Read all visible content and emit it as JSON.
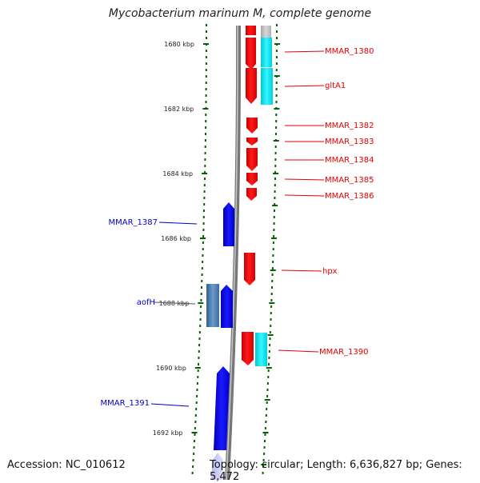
{
  "title": "Mycobacterium marinum M, complete genome",
  "footer": {
    "accession": "Accession: NC_010612",
    "summary": "Topology: circular; Length: 6,636,827 bp; Genes: 5,472"
  },
  "colors": {
    "forward_gene": "#ff0000",
    "reverse_gene": "#0000ff",
    "forward_feature": "#00e5ee",
    "reverse_feature": "#4a7fb5",
    "backbone": "#808080",
    "tick": "#006400"
  },
  "scale": {
    "unit": "kbp",
    "ticks": [
      {
        "label": "1680 kbp"
      },
      {
        "label": "1682 kbp"
      },
      {
        "label": "1684 kbp"
      },
      {
        "label": "1686 kbp"
      },
      {
        "label": "1688 kbp"
      },
      {
        "label": "1690 kbp"
      },
      {
        "label": "1692 kbp"
      }
    ]
  },
  "gene_labels_right": [
    {
      "name": "MMAR_1380"
    },
    {
      "name": "gltA1"
    },
    {
      "name": "MMAR_1382"
    },
    {
      "name": "MMAR_1383"
    },
    {
      "name": "MMAR_1384"
    },
    {
      "name": "MMAR_1385"
    },
    {
      "name": "MMAR_1386"
    },
    {
      "name": "hpx"
    },
    {
      "name": "MMAR_1390"
    }
  ],
  "gene_labels_left": [
    {
      "name": "MMAR_1387"
    },
    {
      "name": "aofH"
    },
    {
      "name": "MMAR_1391"
    }
  ]
}
